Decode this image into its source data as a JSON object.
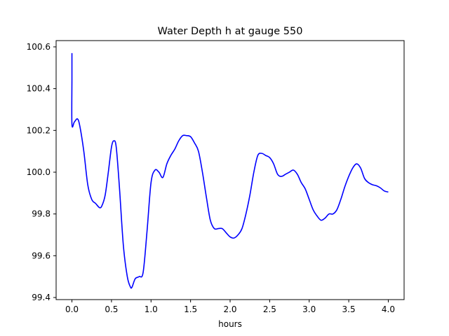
{
  "chart_data": {
    "type": "line",
    "title": "Water Depth h at gauge 550",
    "xlabel": "hours",
    "ylabel": "",
    "xlim": [
      -0.2,
      4.2
    ],
    "ylim": [
      99.39,
      100.63
    ],
    "xticks": [
      0.0,
      0.5,
      1.0,
      1.5,
      2.0,
      2.5,
      3.0,
      3.5,
      4.0
    ],
    "xtick_labels": [
      "0.0",
      "0.5",
      "1.0",
      "1.5",
      "2.0",
      "2.5",
      "3.0",
      "3.5",
      "4.0"
    ],
    "yticks": [
      99.4,
      99.6,
      99.8,
      100.0,
      100.2,
      100.4,
      100.6
    ],
    "ytick_labels": [
      "99.4",
      "99.6",
      "99.8",
      "100.0",
      "100.2",
      "100.4",
      "100.6"
    ],
    "grid": false,
    "series": [
      {
        "color": "#0000ff",
        "x": [
          0.0,
          0.0,
          0.0,
          0.03,
          0.07,
          0.1,
          0.15,
          0.2,
          0.25,
          0.3,
          0.35,
          0.38,
          0.42,
          0.46,
          0.5,
          0.53,
          0.56,
          0.6,
          0.65,
          0.7,
          0.74,
          0.76,
          0.8,
          0.85,
          0.9,
          0.95,
          1.0,
          1.05,
          1.1,
          1.15,
          1.2,
          1.25,
          1.3,
          1.35,
          1.4,
          1.45,
          1.5,
          1.55,
          1.6,
          1.65,
          1.7,
          1.75,
          1.8,
          1.85,
          1.9,
          1.95,
          2.0,
          2.05,
          2.1,
          2.15,
          2.2,
          2.25,
          2.3,
          2.35,
          2.4,
          2.45,
          2.5,
          2.55,
          2.6,
          2.65,
          2.7,
          2.75,
          2.8,
          2.85,
          2.9,
          2.95,
          3.0,
          3.05,
          3.1,
          3.15,
          3.2,
          3.25,
          3.3,
          3.35,
          3.4,
          3.45,
          3.5,
          3.55,
          3.6,
          3.65,
          3.7,
          3.75,
          3.8,
          3.85,
          3.9,
          3.95,
          4.0
        ],
        "y": [
          100.57,
          100.45,
          100.23,
          100.24,
          100.255,
          100.22,
          100.1,
          99.94,
          99.87,
          99.85,
          99.83,
          99.84,
          99.89,
          100.0,
          100.12,
          100.15,
          100.12,
          99.93,
          99.65,
          99.5,
          99.45,
          99.45,
          99.49,
          99.5,
          99.52,
          99.72,
          99.95,
          100.01,
          100.0,
          99.975,
          100.04,
          100.08,
          100.11,
          100.15,
          100.175,
          100.175,
          100.17,
          100.14,
          100.1,
          100.0,
          99.88,
          99.77,
          99.73,
          99.73,
          99.73,
          99.71,
          99.69,
          99.685,
          99.7,
          99.73,
          99.8,
          99.89,
          100.0,
          100.08,
          100.09,
          100.08,
          100.07,
          100.04,
          99.99,
          99.98,
          99.99,
          100.0,
          100.01,
          99.99,
          99.95,
          99.92,
          99.87,
          99.82,
          99.79,
          99.77,
          99.78,
          99.8,
          99.8,
          99.82,
          99.87,
          99.93,
          99.98,
          100.02,
          100.04,
          100.02,
          99.97,
          99.95,
          99.94,
          99.935,
          99.925,
          99.91,
          99.905
        ]
      }
    ]
  }
}
